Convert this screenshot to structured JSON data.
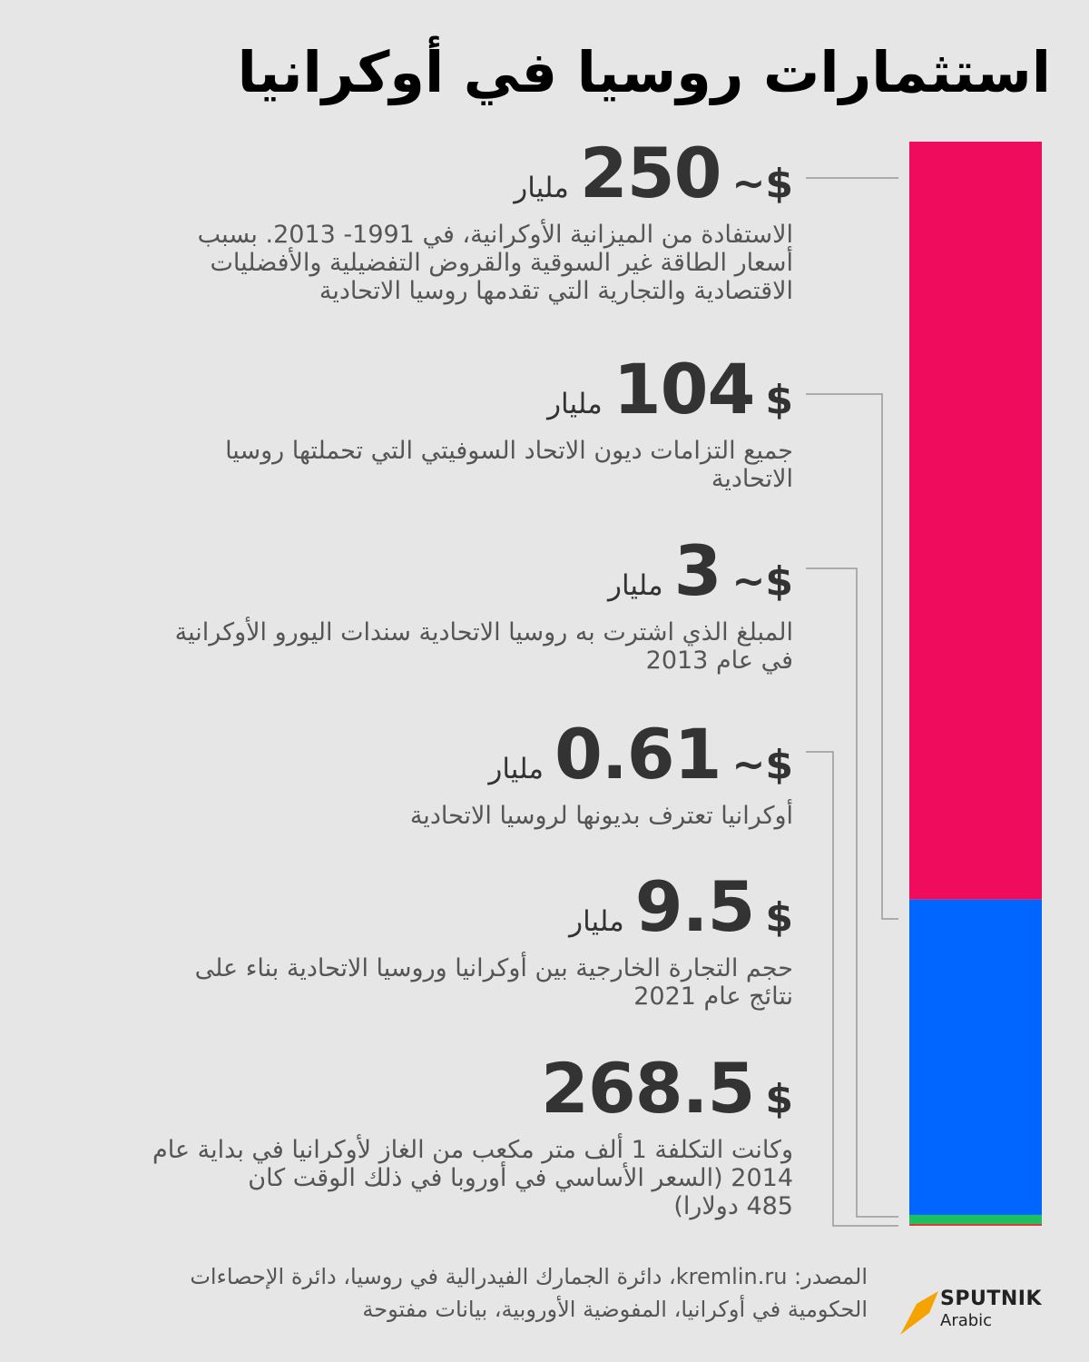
{
  "title": "استثمارات روسيا في أوكرانيا",
  "chart_data": {
    "type": "bar",
    "stacked": true,
    "orientation": "vertical",
    "unit": "مليار",
    "currency": "$",
    "segments": [
      {
        "value": 250,
        "color": "#f00c5c"
      },
      {
        "value": 104,
        "color": "#0066ff"
      },
      {
        "value": 3,
        "color": "#1cc060"
      },
      {
        "value": 0.61,
        "color": "#e03a3a"
      }
    ]
  },
  "items": [
    {
      "prefix": "~$",
      "value": "250",
      "unit": "مليار",
      "desc": "الاستفادة من الميزانية الأوكرانية، في 1991- 2013. بسبب\nأسعار الطاقة غير السوقية والقروض التفضيلية والأفضليات\nالاقتصادية والتجارية التي تقدمها روسيا الاتحادية"
    },
    {
      "prefix": "$",
      "value": "104",
      "unit": "مليار",
      "desc": "جميع التزامات ديون الاتحاد السوفيتي التي تحملتها روسيا\nالاتحادية"
    },
    {
      "prefix": "~$",
      "value": "3",
      "unit": "مليار",
      "desc": "المبلغ الذي اشترت به روسيا الاتحادية سندات اليورو الأوكرانية\nفي عام 2013"
    },
    {
      "prefix": "~$",
      "value": "0.61",
      "unit": "مليار",
      "desc": "أوكرانيا تعترف بديونها لروسيا الاتحادية"
    },
    {
      "prefix": "$",
      "value": "9.5",
      "unit": "مليار",
      "desc": "حجم التجارة الخارجية بين أوكرانيا وروسيا الاتحادية بناء على\nنتائج عام 2021"
    },
    {
      "prefix": "$",
      "value": "268.5",
      "unit": "",
      "desc": "وكانت التكلفة 1 ألف متر مكعب من الغاز لأوكرانيا في بداية عام\n2014 (السعر الأساسي في أوروبا في ذلك الوقت كان\n485 دولارا)"
    }
  ],
  "source": "المصدر: kremlin.ru، دائرة الجمارك الفيدرالية في روسيا، دائرة الإحصاءات\nالحكومية في أوكرانيا، المفوضية الأوروبية، بيانات مفتوحة",
  "logo": {
    "name": "SPUTNIK",
    "sub": "Arabic",
    "color": "#f4a300"
  }
}
